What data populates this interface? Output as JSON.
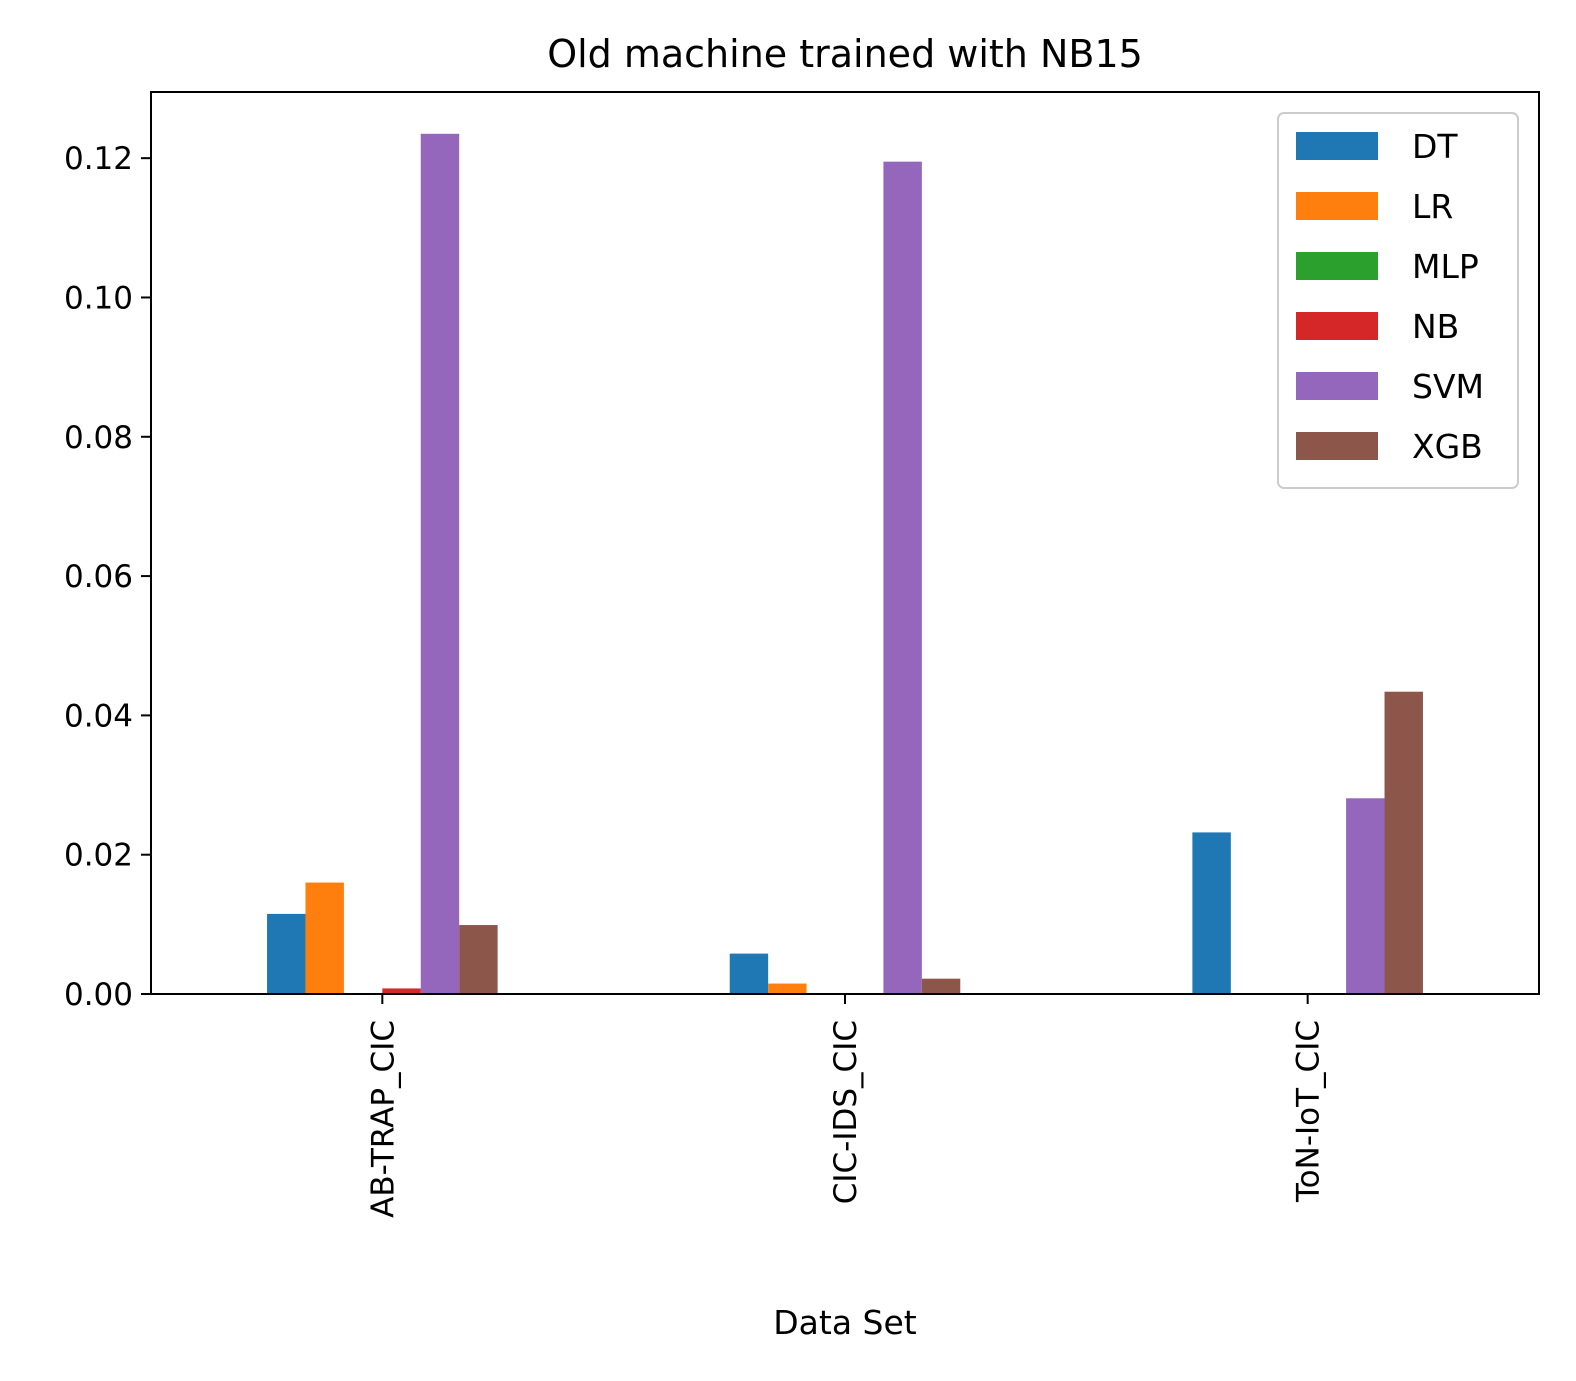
{
  "chart_data": {
    "type": "bar",
    "title": "Old machine trained with NB15",
    "xlabel": "Data Set",
    "ylabel": "",
    "categories": [
      "AB-TRAP_CIC",
      "CIC-IDS_CIC",
      "ToN-IoT_CIC"
    ],
    "series": [
      {
        "name": "DT",
        "color": "#1f77b4",
        "values": [
          0.0115,
          0.0058,
          0.0232
        ]
      },
      {
        "name": "LR",
        "color": "#ff7f0e",
        "values": [
          0.016,
          0.0015,
          0.0
        ]
      },
      {
        "name": "MLP",
        "color": "#2ca02c",
        "values": [
          0.0,
          0.0,
          0.0
        ]
      },
      {
        "name": "NB",
        "color": "#d62728",
        "values": [
          0.0008,
          0.0,
          0.0
        ]
      },
      {
        "name": "SVM",
        "color": "#9467bd",
        "values": [
          0.1235,
          0.1195,
          0.0281
        ]
      },
      {
        "name": "XGB",
        "color": "#8c564b",
        "values": [
          0.0099,
          0.0022,
          0.0434
        ]
      }
    ],
    "ylim": [
      0,
      0.1295
    ],
    "yticks": [
      "0.00",
      "0.02",
      "0.04",
      "0.06",
      "0.08",
      "0.10",
      "0.12"
    ],
    "legend_position": "top-right",
    "grid": false
  }
}
